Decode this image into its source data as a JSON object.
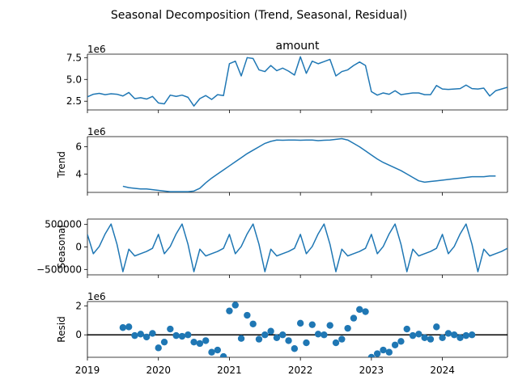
{
  "figure": {
    "title": "Seasonal Decomposition (Trend, Seasonal, Residual)"
  },
  "colors": {
    "series": "#1f77b4",
    "axis": "#000000",
    "zero_line": "#000000"
  },
  "chart_data": [
    {
      "type": "line",
      "panel": "observed",
      "title": "amount",
      "ylabel": "",
      "exponent_label": "1e6",
      "scale": 1000000,
      "x_start": "2019-01",
      "x_step": "monthly",
      "xlim": [
        "2019-01",
        "2024-12"
      ],
      "ylim": [
        1.5,
        7.9
      ],
      "yticks": [
        2.5,
        5.0,
        7.5
      ],
      "ytick_labels": [
        "2.5",
        "5.0",
        "7.5"
      ],
      "values": [
        3.0,
        3.3,
        3.4,
        3.25,
        3.35,
        3.3,
        3.1,
        3.5,
        2.8,
        2.9,
        2.75,
        3.05,
        2.3,
        2.2,
        3.2,
        3.05,
        3.2,
        2.95,
        1.95,
        2.8,
        3.15,
        2.7,
        3.25,
        3.15,
        6.8,
        7.1,
        5.4,
        7.5,
        7.4,
        6.1,
        5.9,
        6.6,
        6.0,
        6.3,
        5.95,
        5.5,
        7.6,
        5.7,
        7.1,
        6.8,
        7.05,
        7.3,
        5.4,
        5.9,
        6.1,
        6.6,
        7.0,
        6.6,
        3.6,
        3.2,
        3.45,
        3.3,
        3.7,
        3.25,
        3.35,
        3.45,
        3.45,
        3.25,
        3.25,
        4.3,
        3.9,
        3.85,
        3.9,
        3.95,
        4.35,
        3.95,
        3.9,
        4.0,
        3.1,
        3.7,
        3.9,
        4.1
      ]
    },
    {
      "type": "line",
      "panel": "trend",
      "title": "",
      "ylabel": "Trend",
      "exponent_label": "1e6",
      "scale": 1000000,
      "x_start": "2019-07",
      "x_step": "monthly",
      "xlim": [
        "2019-01",
        "2024-12"
      ],
      "ylim": [
        2.65,
        6.75
      ],
      "yticks": [
        4,
        6
      ],
      "ytick_labels": [
        "4",
        "6"
      ],
      "values": [
        3.1,
        3.0,
        2.95,
        2.9,
        2.9,
        2.85,
        2.8,
        2.75,
        2.7,
        2.7,
        2.7,
        2.7,
        2.75,
        2.95,
        3.35,
        3.7,
        4.0,
        4.3,
        4.6,
        4.9,
        5.2,
        5.5,
        5.75,
        6.0,
        6.25,
        6.4,
        6.5,
        6.48,
        6.5,
        6.5,
        6.48,
        6.5,
        6.5,
        6.45,
        6.48,
        6.5,
        6.55,
        6.6,
        6.5,
        6.25,
        6.0,
        5.7,
        5.4,
        5.1,
        4.85,
        4.65,
        4.45,
        4.25,
        4.0,
        3.75,
        3.5,
        3.4,
        3.45,
        3.5,
        3.55,
        3.6,
        3.65,
        3.7,
        3.75,
        3.8,
        3.8,
        3.8,
        3.85,
        3.85
      ]
    },
    {
      "type": "line",
      "panel": "seasonal",
      "title": "",
      "ylabel": "Seasonal",
      "scale": 1,
      "x_start": "2019-01",
      "x_step": "monthly",
      "xlim": [
        "2019-01",
        "2024-12"
      ],
      "ylim": [
        -620000,
        620000
      ],
      "yticks": [
        -500000,
        0,
        500000
      ],
      "ytick_labels": [
        "−500000",
        "0",
        "500000"
      ],
      "values": [
        280000,
        -150000,
        10000,
        290000,
        510000,
        60000,
        -550000,
        -50000,
        -200000,
        -150000,
        -100000,
        -30000,
        280000,
        -150000,
        10000,
        290000,
        510000,
        60000,
        -550000,
        -50000,
        -200000,
        -150000,
        -100000,
        -30000,
        280000,
        -150000,
        10000,
        290000,
        510000,
        60000,
        -550000,
        -50000,
        -200000,
        -150000,
        -100000,
        -30000,
        280000,
        -150000,
        10000,
        290000,
        510000,
        60000,
        -550000,
        -50000,
        -200000,
        -150000,
        -100000,
        -30000,
        280000,
        -150000,
        10000,
        290000,
        510000,
        60000,
        -550000,
        -50000,
        -200000,
        -150000,
        -100000,
        -30000,
        280000,
        -150000,
        10000,
        290000,
        510000,
        60000,
        -550000,
        -50000,
        -200000,
        -150000,
        -100000,
        -30000
      ]
    },
    {
      "type": "scatter",
      "panel": "residual",
      "title": "",
      "ylabel": "Resid",
      "exponent_label": "1e6",
      "scale": 1000000,
      "x_start": "2019-07",
      "x_step": "monthly",
      "xlim": [
        "2019-01",
        "2024-12"
      ],
      "ylim": [
        -1.55,
        2.3
      ],
      "yticks": [
        0,
        2
      ],
      "ytick_labels": [
        "0",
        "2"
      ],
      "zero_line": 0,
      "xticks": [
        "2019-01",
        "2020-01",
        "2021-01",
        "2022-01",
        "2023-01",
        "2024-01"
      ],
      "xtick_labels": [
        "2019",
        "2020",
        "2021",
        "2022",
        "2023",
        "2024"
      ],
      "values": [
        0.5,
        0.55,
        -0.05,
        0.05,
        -0.15,
        0.1,
        -0.9,
        -0.5,
        0.4,
        -0.05,
        -0.1,
        0.0,
        -0.5,
        -0.6,
        -0.4,
        -1.2,
        -1.05,
        -1.5,
        1.65,
        2.05,
        -0.25,
        1.35,
        0.75,
        -0.3,
        0.0,
        0.25,
        -0.2,
        0.0,
        -0.4,
        -0.95,
        0.8,
        -0.55,
        0.7,
        0.05,
        0.0,
        0.65,
        -0.55,
        -0.3,
        0.45,
        1.15,
        1.75,
        1.6,
        -1.55,
        -1.3,
        -1.05,
        -1.2,
        -0.7,
        -0.45,
        0.4,
        -0.05,
        0.05,
        -0.2,
        -0.3,
        0.55,
        -0.2,
        0.1,
        0.0,
        -0.2,
        -0.05,
        0.0
      ]
    }
  ]
}
